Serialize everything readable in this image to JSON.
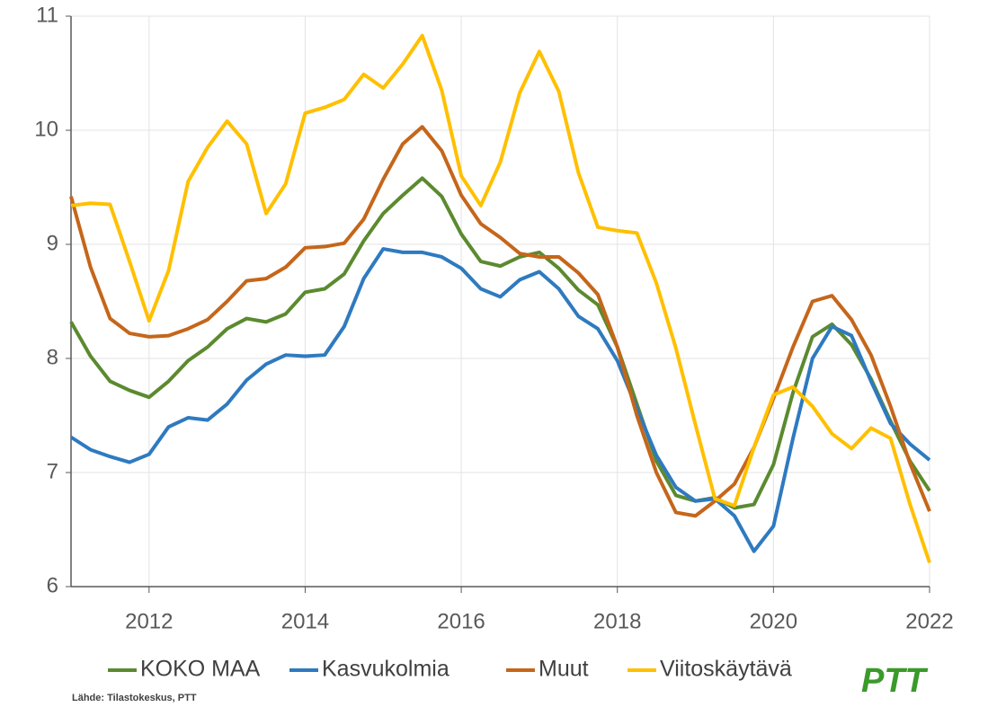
{
  "chart_data": {
    "type": "line",
    "x": [
      2011,
      2011.25,
      2011.5,
      2011.75,
      2012,
      2012.25,
      2012.5,
      2012.75,
      2013,
      2013.25,
      2013.5,
      2013.75,
      2014,
      2014.25,
      2014.5,
      2014.75,
      2015,
      2015.25,
      2015.5,
      2015.75,
      2016,
      2016.25,
      2016.5,
      2016.75,
      2017,
      2017.25,
      2017.5,
      2017.75,
      2018,
      2018.25,
      2018.5,
      2018.75,
      2019,
      2019.25,
      2019.5,
      2019.75,
      2020,
      2020.25,
      2020.5,
      2020.75,
      2021,
      2021.25,
      2021.5,
      2021.75,
      2022
    ],
    "series": [
      {
        "name": "KOKO MAA",
        "color": "#5b8a2f",
        "values": [
          8.32,
          8.02,
          7.8,
          7.72,
          7.66,
          7.8,
          7.98,
          8.1,
          8.26,
          8.35,
          8.32,
          8.39,
          8.58,
          8.61,
          8.74,
          9.03,
          9.27,
          9.43,
          9.58,
          9.42,
          9.09,
          8.85,
          8.81,
          8.89,
          8.93,
          8.79,
          8.6,
          8.47,
          8.1,
          7.6,
          7.1,
          6.8,
          6.75,
          6.78,
          6.69,
          6.72,
          7.07,
          7.7,
          8.19,
          8.3,
          8.12,
          7.82,
          7.45,
          7.1,
          6.84
        ]
      },
      {
        "name": "Kasvukolmia",
        "color": "#2e7ac0",
        "values": [
          7.31,
          7.2,
          7.14,
          7.09,
          7.16,
          7.4,
          7.48,
          7.46,
          7.6,
          7.81,
          7.95,
          8.03,
          8.02,
          8.03,
          8.28,
          8.7,
          8.96,
          8.93,
          8.93,
          8.89,
          8.79,
          8.61,
          8.54,
          8.69,
          8.76,
          8.61,
          8.37,
          8.26,
          7.98,
          7.56,
          7.15,
          6.87,
          6.75,
          6.77,
          6.62,
          6.31,
          6.53,
          7.3,
          8.0,
          8.28,
          8.2,
          7.8,
          7.43,
          7.25,
          7.11
        ]
      },
      {
        "name": "Muut",
        "color": "#c5661a",
        "values": [
          9.42,
          8.8,
          8.35,
          8.22,
          8.19,
          8.2,
          8.26,
          8.34,
          8.5,
          8.68,
          8.7,
          8.8,
          8.97,
          8.98,
          9.01,
          9.22,
          9.57,
          9.88,
          10.03,
          9.82,
          9.43,
          9.18,
          9.06,
          8.92,
          8.89,
          8.89,
          8.75,
          8.56,
          8.1,
          7.5,
          7.0,
          6.65,
          6.62,
          6.75,
          6.9,
          7.22,
          7.65,
          8.1,
          8.5,
          8.55,
          8.34,
          8.03,
          7.58,
          7.08,
          6.66
        ]
      },
      {
        "name": "Viitoskäytävä",
        "color": "#ffc000",
        "values": [
          9.34,
          9.36,
          9.35,
          8.85,
          8.33,
          8.77,
          9.55,
          9.85,
          10.08,
          9.88,
          9.27,
          9.53,
          10.15,
          10.2,
          10.27,
          10.49,
          10.37,
          10.58,
          10.83,
          10.35,
          9.6,
          9.34,
          9.72,
          10.33,
          10.69,
          10.34,
          9.63,
          9.15,
          9.12,
          9.1,
          8.66,
          8.09,
          7.42,
          6.77,
          6.71,
          7.22,
          7.68,
          7.75,
          7.58,
          7.34,
          7.21,
          7.39,
          7.3,
          6.72,
          6.21
        ]
      }
    ],
    "xlim": [
      2011,
      2022
    ],
    "xticks": [
      2012,
      2014,
      2016,
      2018,
      2020,
      2022
    ],
    "ylim": [
      6,
      11
    ],
    "yticks": [
      6,
      7,
      8,
      9,
      10,
      11
    ],
    "grid": true,
    "legend": "bottom",
    "source": "Lähde: Tilastokeskus, PTT",
    "logo": "PTT"
  }
}
